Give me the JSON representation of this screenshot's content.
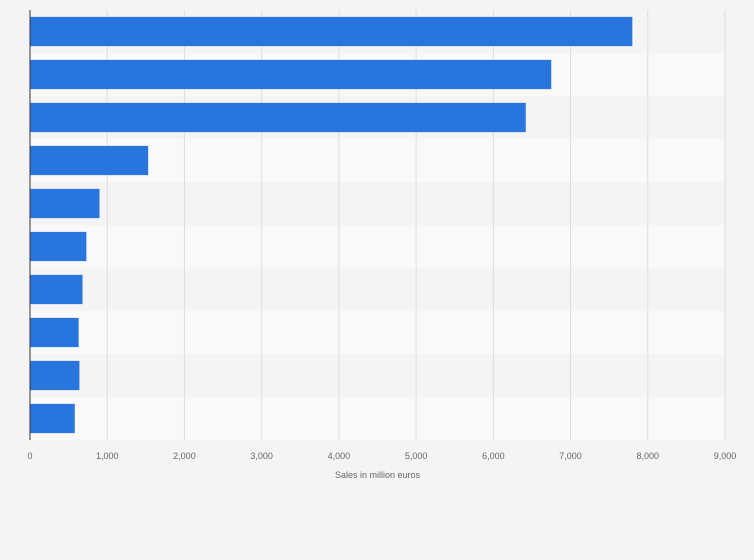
{
  "chart_data": {
    "type": "bar",
    "orientation": "horizontal",
    "categories": [
      "",
      "",
      "",
      "",
      "",
      "",
      "",
      "",
      "",
      ""
    ],
    "values": [
      7800,
      6750,
      6420,
      1530,
      900,
      730,
      680,
      630,
      640,
      580
    ],
    "xlabel": "Sales in million euros",
    "ylabel": "",
    "xlim": [
      0,
      9000
    ],
    "xticks": [
      0,
      1000,
      2000,
      3000,
      4000,
      5000,
      6000,
      7000,
      8000,
      9000
    ],
    "xtick_labels": [
      "0",
      "1,000",
      "2,000",
      "3,000",
      "4,000",
      "5,000",
      "6,000",
      "7,000",
      "8,000",
      "9,000"
    ],
    "grid": true,
    "legend": "none",
    "colors": {
      "bar": "#2876dd",
      "band_light": "#f4f4f4",
      "band_dark": "#f9f9f9",
      "grid": "#dddddd",
      "axis": "#333333",
      "text": "#666666"
    }
  }
}
